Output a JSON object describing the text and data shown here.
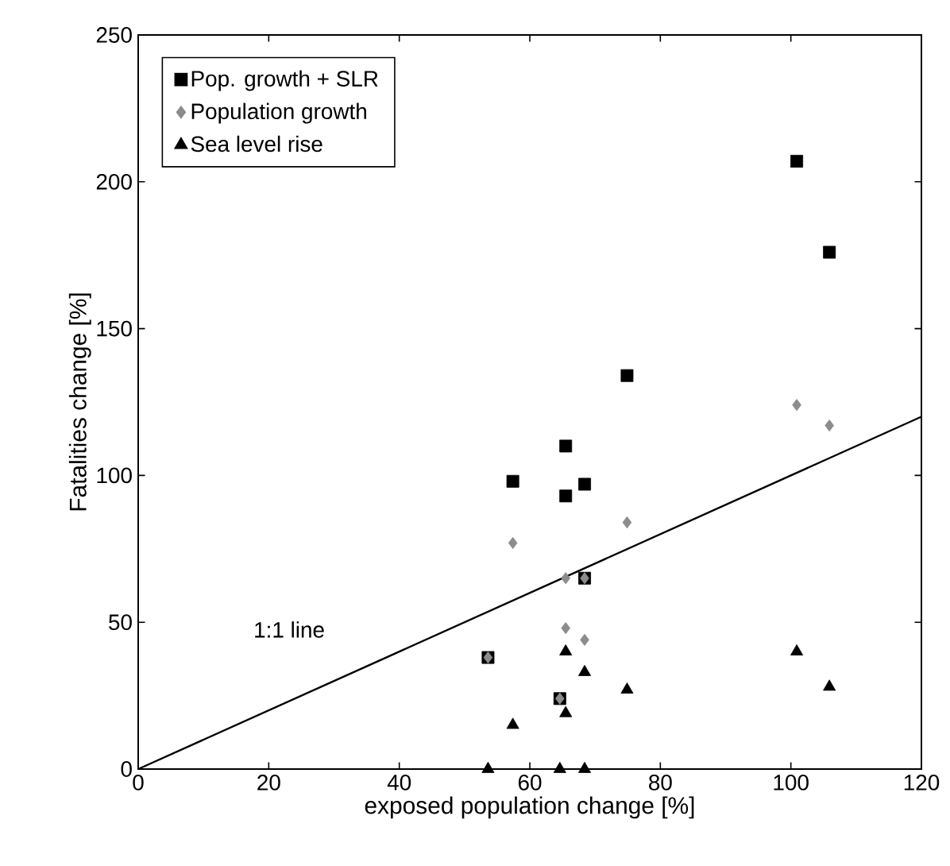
{
  "chart_data": {
    "type": "scatter",
    "xlabel": "exposed population change [%]",
    "ylabel": "Fatalities change [%]",
    "xlim": [
      0,
      120
    ],
    "ylim": [
      0,
      250
    ],
    "xticks": [
      0,
      20,
      40,
      60,
      80,
      100,
      120
    ],
    "yticks": [
      0,
      50,
      100,
      150,
      200,
      250
    ],
    "grid": false,
    "legend": "top left",
    "annotations": [
      "1:1 line"
    ],
    "series": [
      {
        "name": "Pop. growth + SLR",
        "color": "#000000",
        "marker": "square",
        "x": [
          53.6,
          57.4,
          64.6,
          65.5,
          65.5,
          68.4,
          68.4,
          74.9,
          100.9,
          105.9
        ],
        "values": [
          38,
          98,
          24,
          110,
          93,
          97,
          65,
          134,
          207,
          176
        ]
      },
      {
        "name": "Population growth",
        "color": "#8c8c8c",
        "marker": "diamond",
        "x": [
          53.6,
          57.4,
          64.6,
          65.5,
          65.5,
          68.4,
          68.4,
          74.9,
          100.9,
          105.9
        ],
        "values": [
          38,
          77,
          24,
          65,
          48,
          65,
          44,
          84,
          124,
          117
        ]
      },
      {
        "name": "Sea level rise",
        "color": "#000000",
        "marker": "triangle",
        "x": [
          53.6,
          57.4,
          64.6,
          65.5,
          65.5,
          68.4,
          68.4,
          74.9,
          100.9,
          105.9
        ],
        "values": [
          0,
          15,
          0,
          40,
          19,
          0,
          33,
          27,
          40,
          28
        ]
      },
      {
        "type": "line",
        "color": "#000000",
        "marker": "none",
        "x": [
          0,
          120
        ],
        "values": [
          0,
          120
        ]
      }
    ]
  }
}
